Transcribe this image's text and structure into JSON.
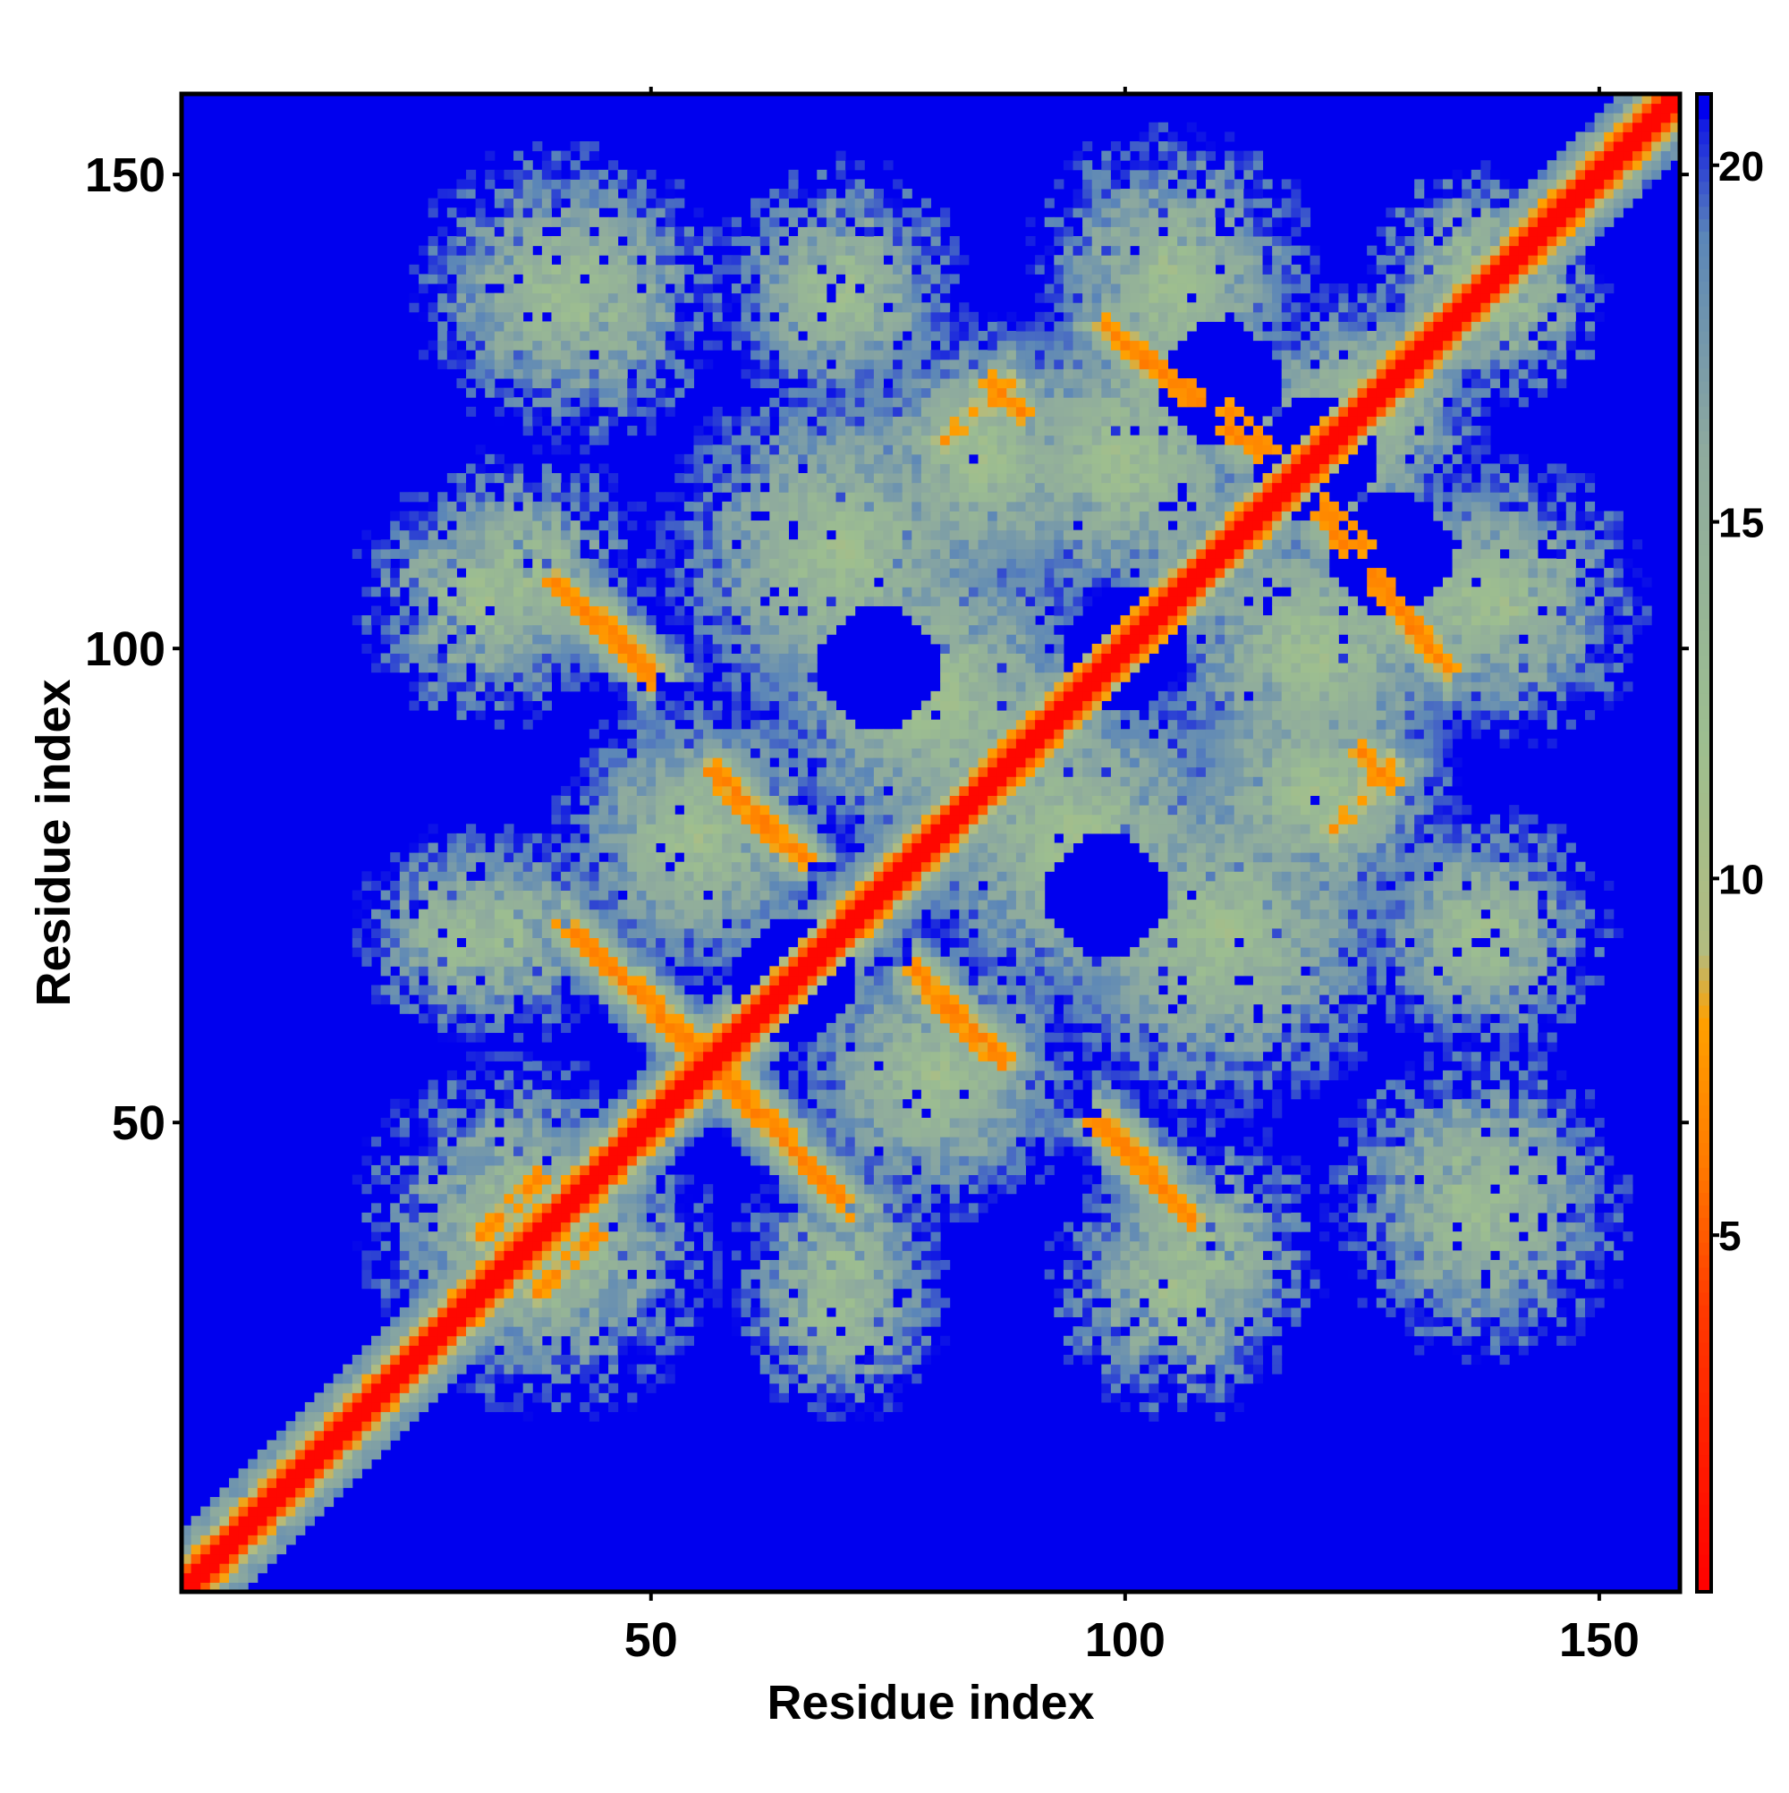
{
  "chart_data": {
    "type": "heatmap",
    "title": "",
    "xlabel": "Residue index",
    "ylabel": "Residue index",
    "n_residues": 158,
    "xlim": [
      1,
      158
    ],
    "ylim": [
      1,
      158
    ],
    "xticks": [
      50,
      100,
      150
    ],
    "yticks": [
      50,
      100,
      150
    ],
    "colorbar": {
      "range": [
        0,
        21
      ],
      "ticks": [
        5,
        10,
        15,
        20
      ],
      "stops": [
        {
          "value": 0,
          "color": "#ff0000"
        },
        {
          "value": 4,
          "color": "#ff3a00"
        },
        {
          "value": 6,
          "color": "#ff7a00"
        },
        {
          "value": 8,
          "color": "#ffa000"
        },
        {
          "value": 9,
          "color": "#b2bc80"
        },
        {
          "value": 12,
          "color": "#9dbe90"
        },
        {
          "value": 16,
          "color": "#8eaa9e"
        },
        {
          "value": 19,
          "color": "#5b86b8"
        },
        {
          "value": 21,
          "color": "#0000ee"
        }
      ],
      "legend_position": "right"
    },
    "background_color": "#0000ee",
    "diagonal_color": "#ff0000",
    "distance_unit_note": "",
    "contact_bands": [
      {
        "kind": "diagonal",
        "from": [
          1,
          1
        ],
        "to": [
          158,
          158
        ],
        "value": 0
      },
      {
        "kind": "antiparallel",
        "from": [
          40,
          107
        ],
        "to": [
          50,
          98
        ],
        "value": 6
      },
      {
        "kind": "antiparallel",
        "from": [
          57,
          87
        ],
        "to": [
          66,
          78
        ],
        "value": 6
      },
      {
        "kind": "antiparallel",
        "from": [
          41,
          71
        ],
        "to": [
          55,
          57
        ],
        "value": 6
      },
      {
        "kind": "antiparallel",
        "from": [
          57,
          56
        ],
        "to": [
          70,
          42
        ],
        "value": 6
      },
      {
        "kind": "antiparallel",
        "from": [
          79,
          64
        ],
        "to": [
          87,
          56
        ],
        "value": 6
      },
      {
        "kind": "antiparallel",
        "from": [
          97,
          50
        ],
        "to": [
          107,
          40
        ],
        "value": 6
      },
      {
        "kind": "antiparallel",
        "from": [
          98,
          134
        ],
        "to": [
          108,
          126
        ],
        "value": 6
      },
      {
        "kind": "antiparallel",
        "from": [
          111,
          123
        ],
        "to": [
          115,
          120
        ],
        "value": 6
      },
      {
        "kind": "antiparallel",
        "from": [
          121,
          115
        ],
        "to": [
          125,
          111
        ],
        "value": 6
      },
      {
        "kind": "antiparallel",
        "from": [
          126,
          107
        ],
        "to": [
          134,
          98
        ],
        "value": 6
      },
      {
        "kind": "antiparallel",
        "from": [
          125,
          89
        ],
        "to": [
          128,
          86
        ],
        "value": 6
      },
      {
        "kind": "antiparallel",
        "from": [
          81,
          122
        ],
        "to": [
          84,
          125
        ],
        "value": 7
      },
      {
        "kind": "antiparallel",
        "from": [
          86,
          126
        ],
        "to": [
          88,
          128
        ],
        "value": 7
      },
      {
        "kind": "antiparallel",
        "from": [
          85,
          87
        ],
        "to": [
          91,
          93
        ],
        "value": 6
      },
      {
        "kind": "antiparallel",
        "from": [
          32,
          38
        ],
        "to": [
          38,
          44
        ],
        "value": 6
      }
    ],
    "medium_regions": [
      {
        "center": [
          43,
          137
        ],
        "spread": 8
      },
      {
        "center": [
          70,
          137
        ],
        "spread": 6
      },
      {
        "center": [
          105,
          137
        ],
        "spread": 7
      },
      {
        "center": [
          37,
          108
        ],
        "spread": 7
      },
      {
        "center": [
          35,
          70
        ],
        "spread": 6
      },
      {
        "center": [
          36,
          40
        ],
        "spread": 9
      },
      {
        "center": [
          70,
          30
        ],
        "spread": 6
      },
      {
        "center": [
          105,
          32
        ],
        "spread": 7
      },
      {
        "center": [
          138,
          40
        ],
        "spread": 8
      },
      {
        "center": [
          138,
          70
        ],
        "spread": 7
      },
      {
        "center": [
          140,
          105
        ],
        "spread": 8
      },
      {
        "center": [
          137,
          140
        ],
        "spread": 6
      },
      {
        "center": [
          70,
          110
        ],
        "spread": 10
      },
      {
        "center": [
          110,
          70
        ],
        "spread": 10
      },
      {
        "center": [
          80,
          95
        ],
        "spread": 10
      },
      {
        "center": [
          95,
          80
        ],
        "spread": 10
      },
      {
        "center": [
          125,
          125
        ],
        "spread": 7
      },
      {
        "center": [
          55,
          80
        ],
        "spread": 8
      },
      {
        "center": [
          80,
          55
        ],
        "spread": 8
      },
      {
        "center": [
          100,
          120
        ],
        "spread": 9
      },
      {
        "center": [
          120,
          100
        ],
        "spread": 9
      },
      {
        "center": [
          85,
          120
        ],
        "spread": 8
      },
      {
        "center": [
          120,
          85
        ],
        "spread": 8
      }
    ],
    "empty_pockets": [
      {
        "center": [
          74,
          98
        ]
      },
      {
        "center": [
          98,
          74
        ]
      },
      {
        "center": [
          65,
          65
        ]
      },
      {
        "center": [
          100,
          100
        ]
      },
      {
        "center": [
          120,
          120
        ]
      },
      {
        "center": [
          110,
          128
        ]
      },
      {
        "center": [
          128,
          110
        ]
      }
    ]
  }
}
